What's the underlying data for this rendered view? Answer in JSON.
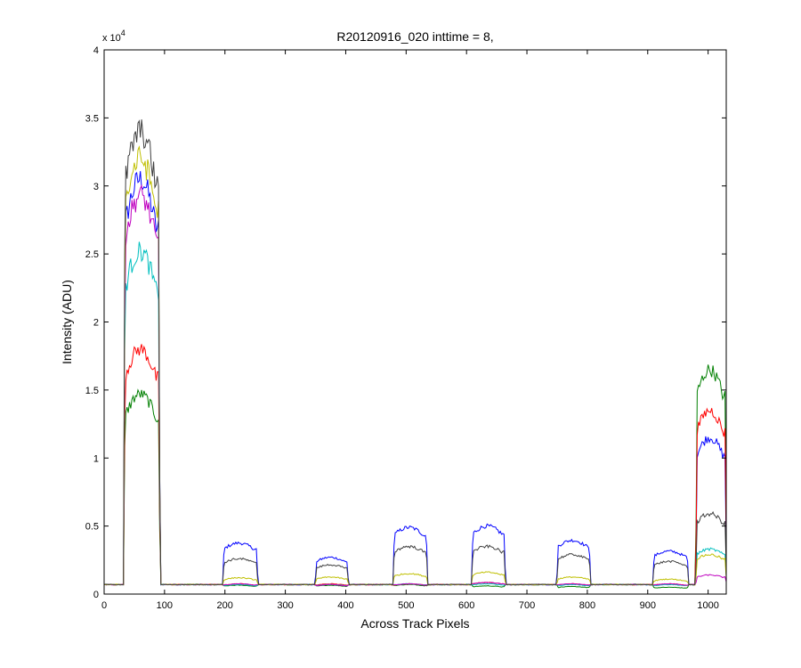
{
  "chart_data": {
    "type": "line",
    "title": "R20120916_020 inttime = 8,",
    "xlabel": "Across Track Pixels",
    "ylabel": "Intensity (ADU)",
    "y_exponent_label": "x 10",
    "y_exponent_power": "4",
    "xlim": [
      0,
      1030
    ],
    "ylim": [
      0,
      40000
    ],
    "xticks": [
      0,
      100,
      200,
      300,
      400,
      500,
      600,
      700,
      800,
      900,
      1000
    ],
    "yticks": [
      0,
      5000,
      10000,
      15000,
      20000,
      25000,
      30000,
      35000,
      40000
    ],
    "ytick_labels": [
      "0",
      "0.5",
      "1",
      "1.5",
      "2",
      "2.5",
      "3",
      "3.5",
      "4"
    ],
    "grid": false,
    "baseline": 700,
    "plateaus": [
      {
        "x_start": 33,
        "x_end": 92
      },
      {
        "x_start": 197,
        "x_end": 254
      },
      {
        "x_start": 350,
        "x_end": 404
      },
      {
        "x_start": 479,
        "x_end": 535
      },
      {
        "x_start": 609,
        "x_end": 664
      },
      {
        "x_start": 750,
        "x_end": 805
      },
      {
        "x_start": 909,
        "x_end": 967
      },
      {
        "x_start": 980,
        "x_end": 1030
      }
    ],
    "series": [
      {
        "color": "#0000ff",
        "peaks": [
          30500,
          3750,
          2700,
          4900,
          5000,
          3950,
          3150,
          11500
        ]
      },
      {
        "color": "#007f00",
        "peaks": [
          14700,
          650,
          650,
          700,
          600,
          550,
          500,
          16500
        ]
      },
      {
        "color": "#ff0000",
        "peaks": [
          18000,
          750,
          750,
          750,
          850,
          750,
          750,
          13500
        ]
      },
      {
        "color": "#00bfbf",
        "peaks": [
          25200,
          700,
          700,
          750,
          750,
          700,
          700,
          3300
        ]
      },
      {
        "color": "#bf00bf",
        "peaks": [
          29300,
          750,
          700,
          750,
          850,
          750,
          750,
          1400
        ]
      },
      {
        "color": "#bfbf00",
        "peaks": [
          32000,
          1200,
          1250,
          1500,
          1600,
          1250,
          1100,
          2900
        ]
      },
      {
        "color": "#3f3f3f",
        "peaks": [
          34000,
          2600,
          2150,
          3500,
          3500,
          2900,
          2400,
          5900
        ]
      }
    ]
  }
}
